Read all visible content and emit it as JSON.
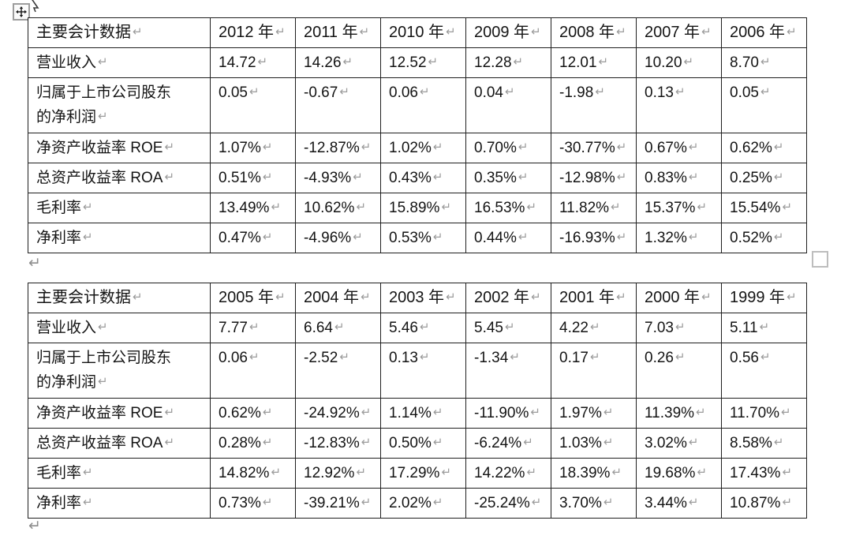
{
  "marks": {
    "cell_end": "↵",
    "paragraph_end": "↵"
  },
  "colors": {
    "table_border": "#1f1f1f",
    "formatting_mark": "#9b9b9b",
    "text": "#141414",
    "resize_handle_border": "#bdbdbd",
    "move_handle_border": "#9d9d9d"
  },
  "tables": [
    {
      "header": [
        "主要会计数据",
        "2012 年",
        "2011 年",
        "2010 年",
        "2009 年",
        "2008 年",
        "2007 年",
        "2006 年"
      ],
      "rows": [
        {
          "label": "营业收入",
          "values": [
            "14.72",
            "14.26",
            "12.52",
            "12.28",
            "12.01",
            "10.20",
            "8.70"
          ]
        },
        {
          "label": "归属于上市公司股东\n的净利润",
          "values": [
            "0.05",
            "-0.67",
            "0.06",
            "0.04",
            "-1.98",
            "0.13",
            "0.05"
          ]
        },
        {
          "label": "净资产收益率 ROE",
          "values": [
            "1.07%",
            "-12.87%",
            "1.02%",
            "0.70%",
            "-30.77%",
            "0.67%",
            "0.62%"
          ]
        },
        {
          "label": "总资产收益率 ROA",
          "values": [
            "0.51%",
            "-4.93%",
            "0.43%",
            "0.35%",
            "-12.98%",
            "0.83%",
            "0.25%"
          ]
        },
        {
          "label": "毛利率",
          "values": [
            "13.49%",
            "10.62%",
            "15.89%",
            "16.53%",
            "11.82%",
            "15.37%",
            "15.54%"
          ]
        },
        {
          "label": "净利率",
          "values": [
            "0.47%",
            "-4.96%",
            "0.53%",
            "0.44%",
            "-16.93%",
            "1.32%",
            "0.52%"
          ]
        }
      ]
    },
    {
      "header": [
        "主要会计数据",
        "2005 年",
        "2004 年",
        "2003 年",
        "2002 年",
        "2001 年",
        "2000 年",
        "1999 年"
      ],
      "rows": [
        {
          "label": "营业收入",
          "values": [
            "7.77",
            "6.64",
            "5.46",
            "5.45",
            "4.22",
            "7.03",
            "5.11"
          ]
        },
        {
          "label": "归属于上市公司股东\n的净利润",
          "values": [
            "0.06",
            "-2.52",
            "0.13",
            "-1.34",
            "0.17",
            "0.26",
            "0.56"
          ]
        },
        {
          "label": "净资产收益率 ROE",
          "values": [
            "0.62%",
            "-24.92%",
            "1.14%",
            "-11.90%",
            "1.97%",
            "11.39%",
            "11.70%"
          ]
        },
        {
          "label": "总资产收益率 ROA",
          "values": [
            "0.28%",
            "-12.83%",
            "0.50%",
            "-6.24%",
            "1.03%",
            "3.02%",
            "8.58%"
          ]
        },
        {
          "label": "毛利率",
          "values": [
            "14.82%",
            "12.92%",
            "17.29%",
            "14.22%",
            "18.39%",
            "19.68%",
            "17.43%"
          ]
        },
        {
          "label": "净利率",
          "values": [
            "0.73%",
            "-39.21%",
            "2.02%",
            "-25.24%",
            "3.70%",
            "3.44%",
            "10.87%"
          ]
        }
      ]
    }
  ]
}
